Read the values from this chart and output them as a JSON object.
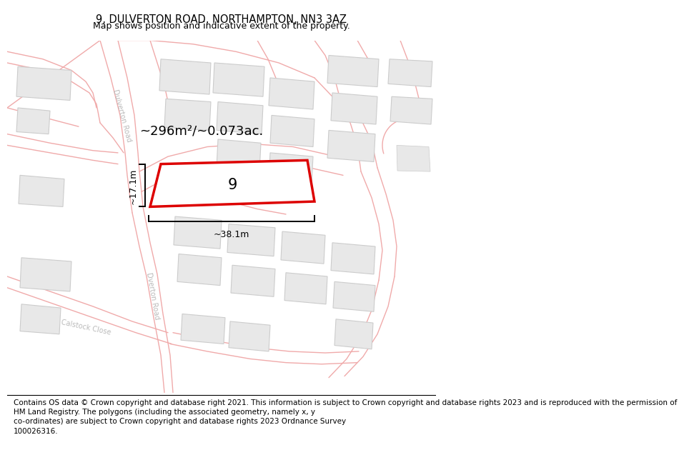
{
  "title": "9, DULVERTON ROAD, NORTHAMPTON, NN3 3AZ",
  "subtitle": "Map shows position and indicative extent of the property.",
  "footer": "Contains OS data © Crown copyright and database right 2021. This information is subject to Crown copyright and database rights 2023 and is reproduced with the permission of\nHM Land Registry. The polygons (including the associated geometry, namely x, y\nco-ordinates) are subject to Crown copyright and database rights 2023 Ordnance Survey\n100026316.",
  "map_bg": "#ffffff",
  "road_color": "#f0aaaa",
  "building_color": "#e8e8e8",
  "building_edge": "#cccccc",
  "highlight_color": "#dd0000",
  "highlight_fill": "#ffffff",
  "area_text": "~296m²/~0.073ac.",
  "property_label": "9",
  "dim_width": "~38.1m",
  "dim_height": "~17.1m",
  "title_fontsize": 10.5,
  "subtitle_fontsize": 9,
  "footer_fontsize": 7.5,
  "road_label_color": "#bbbbbb",
  "road_lw": 1.0
}
